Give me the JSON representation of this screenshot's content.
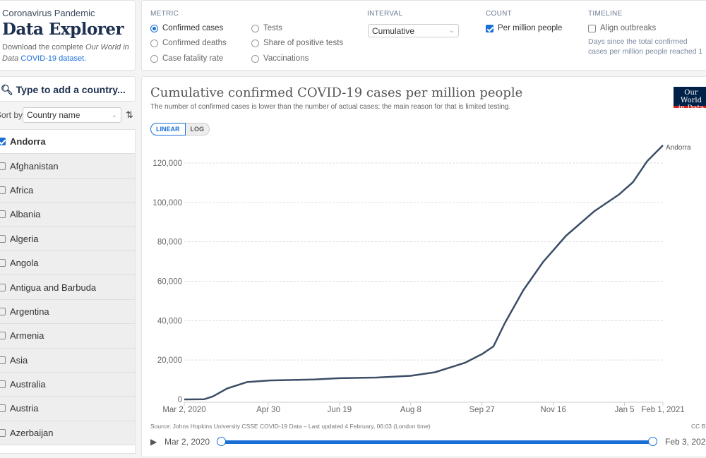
{
  "intro": {
    "supertitle": "Coronavirus Pandemic",
    "title": "Data Explorer",
    "download_prefix": "Download the complete ",
    "download_italic": "Our World in Data",
    "download_link": "COVID-19 dataset."
  },
  "controls": {
    "metric": {
      "label": "METRIC",
      "options": [
        {
          "label": "Confirmed cases",
          "selected": true
        },
        {
          "label": "Confirmed deaths",
          "selected": false
        },
        {
          "label": "Case fatality rate",
          "selected": false
        },
        {
          "label": "Tests",
          "selected": false
        },
        {
          "label": "Share of positive tests",
          "selected": false
        },
        {
          "label": "Vaccinations",
          "selected": false
        }
      ]
    },
    "interval": {
      "label": "INTERVAL",
      "value": "Cumulative"
    },
    "count": {
      "label": "COUNT",
      "per_million": "Per million people",
      "checked": true
    },
    "timeline": {
      "label": "TIMELINE",
      "align": "Align outbreaks",
      "checked": false,
      "note": "Days since the total confirmed cases per million people reached 1"
    }
  },
  "sidebar": {
    "search_placeholder": "Type to add a country...",
    "sort_label": "Sort by",
    "sort_value": "Country name",
    "countries": [
      {
        "name": "Andorra",
        "checked": true
      },
      {
        "name": "Afghanistan",
        "checked": false
      },
      {
        "name": "Africa",
        "checked": false
      },
      {
        "name": "Albania",
        "checked": false
      },
      {
        "name": "Algeria",
        "checked": false
      },
      {
        "name": "Angola",
        "checked": false
      },
      {
        "name": "Antigua and Barbuda",
        "checked": false
      },
      {
        "name": "Argentina",
        "checked": false
      },
      {
        "name": "Armenia",
        "checked": false
      },
      {
        "name": "Asia",
        "checked": false
      },
      {
        "name": "Australia",
        "checked": false
      },
      {
        "name": "Austria",
        "checked": false
      },
      {
        "name": "Azerbaijan",
        "checked": false
      }
    ]
  },
  "chart": {
    "subtitle": "The number of confirmed cases is lower than the number of actual cases; the main reason for that is limited testing.",
    "logo": "Our World in Data",
    "scale_linear": "LINEAR",
    "scale_log": "LOG",
    "source": "Source: Johns Hopkins University CSSE COVID-19 Data – Last updated 4 February, 06:03 (London time)",
    "license": "CC BY",
    "timeline_start": "Mar 2, 2020",
    "timeline_end": "Feb 3, 2021"
  },
  "chart_data": {
    "type": "line",
    "title": "Cumulative confirmed COVID-19 cases per million people",
    "xlim": [
      "2020-03-02",
      "2021-02-01"
    ],
    "ylim": [
      0,
      128000
    ],
    "grid": true,
    "y_ticks": [
      0,
      20000,
      40000,
      60000,
      80000,
      100000,
      120000
    ],
    "y_tick_labels": [
      "0",
      "20,000",
      "40,000",
      "60,000",
      "80,000",
      "100,000",
      "120,000"
    ],
    "x_ticks": [
      "2020-03-02",
      "2020-04-30",
      "2020-06-19",
      "2020-08-08",
      "2020-09-27",
      "2020-11-16",
      "2021-01-05",
      "2021-02-01"
    ],
    "x_tick_labels": [
      "Mar 2, 2020",
      "Apr 30",
      "Jun 19",
      "Aug 8",
      "Sep 27",
      "Nov 16",
      "Jan 5",
      "Feb 1, 2021"
    ],
    "series": [
      {
        "name": "Andorra",
        "color": "#3c4e66",
        "points": [
          [
            "2020-03-02",
            0
          ],
          [
            "2020-03-16",
            100
          ],
          [
            "2020-03-22",
            1500
          ],
          [
            "2020-04-01",
            5500
          ],
          [
            "2020-04-15",
            8800
          ],
          [
            "2020-04-30",
            9600
          ],
          [
            "2020-06-01",
            10100
          ],
          [
            "2020-06-19",
            10800
          ],
          [
            "2020-07-15",
            11100
          ],
          [
            "2020-08-08",
            12000
          ],
          [
            "2020-08-25",
            13800
          ],
          [
            "2020-09-15",
            18600
          ],
          [
            "2020-09-27",
            23000
          ],
          [
            "2020-10-05",
            26900
          ],
          [
            "2020-10-13",
            38700
          ],
          [
            "2020-10-26",
            55500
          ],
          [
            "2020-11-09",
            69900
          ],
          [
            "2020-11-25",
            83100
          ],
          [
            "2020-12-15",
            95600
          ],
          [
            "2021-01-01",
            103900
          ],
          [
            "2021-01-11",
            110300
          ],
          [
            "2021-01-21",
            121000
          ],
          [
            "2021-02-01",
            129000
          ]
        ]
      }
    ]
  }
}
